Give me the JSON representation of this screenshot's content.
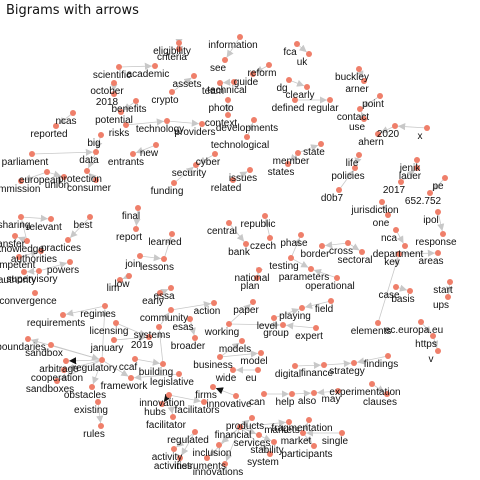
{
  "title": "Bigrams with arrows",
  "colors": {
    "node": "#ef7f6a",
    "edge": "#c8c8c8",
    "text": "#111111"
  },
  "nodes": [
    "eligibility",
    "information",
    "criteria",
    "fca",
    "uk",
    "scientific",
    "academic",
    "see",
    "reform",
    "buckley",
    "assets",
    "guide",
    "arner",
    "october",
    "2018",
    "crypto",
    "technical",
    "team",
    "dg",
    "clearly",
    "benefits",
    "potential",
    "defined",
    "regular",
    "point",
    "contact",
    "photo",
    "ncas",
    "reported",
    "context",
    "use",
    "risks",
    "technology",
    "providers",
    "developments",
    "big",
    "2020",
    "x",
    "technological",
    "ahern",
    "state",
    "parliament",
    "data",
    "entrants",
    "new",
    "cyber",
    "member",
    "states",
    "life",
    "european",
    "protection",
    "union",
    "commission",
    "consumer",
    "security",
    "funding",
    "issues",
    "related",
    "policies",
    "jenik",
    "lauer",
    "2017",
    "pe",
    "652.752",
    "d0b7",
    "final",
    "jurisdiction",
    "sharing",
    "relevant",
    "best",
    "report",
    "learned",
    "one",
    "ipol",
    "response",
    "transfer",
    "knowledge",
    "practices",
    "central",
    "republic",
    "czech",
    "phase",
    "nca",
    "department",
    "competent",
    "authorities",
    "powers",
    "bank",
    "border",
    "cross",
    "sectoral",
    "areas",
    "supervisory",
    "authority",
    "join",
    "lessons",
    "testing",
    "parameters",
    "key",
    "convergence",
    "low",
    "plan",
    "national",
    "operational",
    "basis",
    "case",
    "start",
    "ups",
    "lim",
    "essa",
    "early",
    "field",
    "paper",
    "requirements",
    "regimes",
    "community",
    "action",
    "level",
    "playing",
    "expert",
    "boundaries",
    "licensing",
    "esas",
    "ec.europa.eu",
    "elements",
    "sandbox",
    "2019",
    "january",
    "systems",
    "broader",
    "working",
    "group",
    "https",
    "v",
    "arbitrage",
    "regulatory",
    "models",
    "findings",
    "model",
    "cooperation",
    "ccaf",
    "building",
    "business",
    "digital",
    "finance",
    "strategy",
    "sandboxes",
    "framework",
    "legislative",
    "wide",
    "eu",
    "experimentation",
    "clauses",
    "obstacles",
    "firms",
    "innovative",
    "hubs",
    "facilitators",
    "help",
    "also",
    "may",
    "existing",
    "innovation",
    "can",
    "facilitator",
    "fragmentation",
    "rules",
    "products",
    "markets",
    "financial",
    "market",
    "regulated",
    "single",
    "services",
    "stability",
    "activity",
    "activities",
    "inclusion",
    "system",
    "participants",
    "instruments",
    "innovations"
  ]
}
